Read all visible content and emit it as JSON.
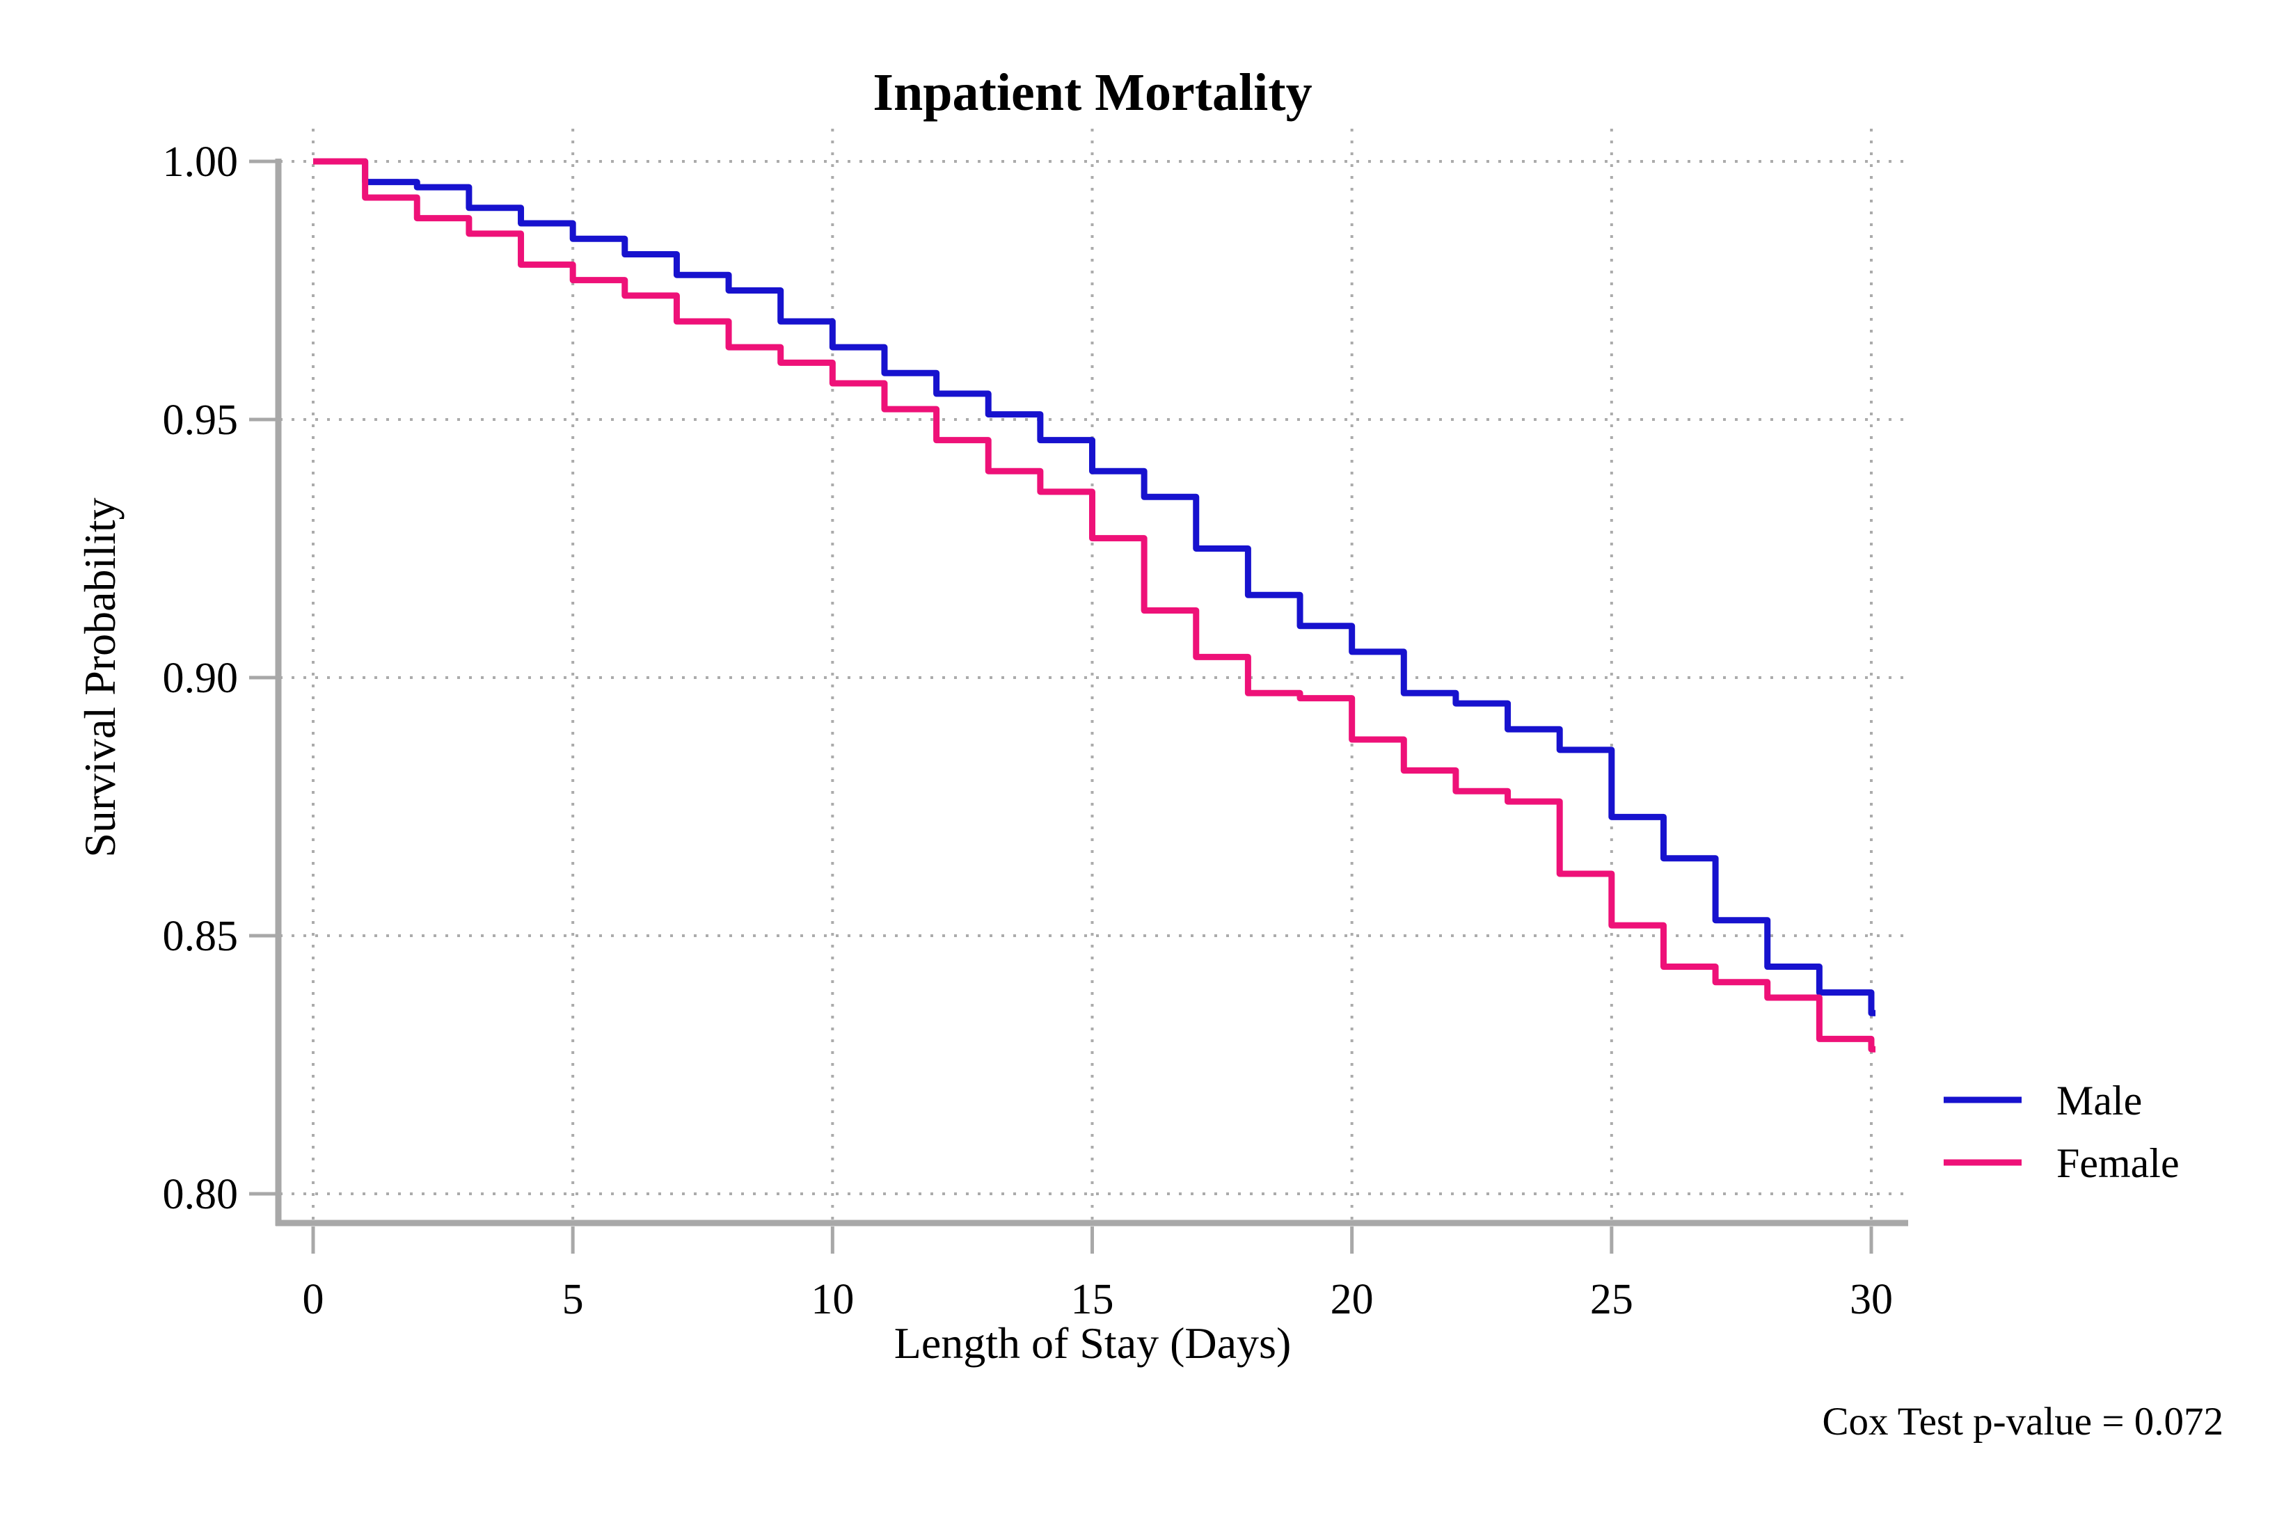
{
  "title": "Inpatient Mortality",
  "axes": {
    "x_label": "Length of Stay (Days)",
    "y_label": "Survival Probability",
    "x_tick_labels": [
      "0",
      "5",
      "10",
      "15",
      "20",
      "25",
      "30"
    ],
    "y_tick_labels": [
      "1.00",
      "0.95",
      "0.90",
      "0.85",
      "0.80"
    ]
  },
  "legend": {
    "items": [
      {
        "label": "Male",
        "color": "#1712CE"
      },
      {
        "label": "Female",
        "color": "#EE1178"
      }
    ]
  },
  "annotation": "Cox Test p-value = 0.072",
  "colors": {
    "male_line": "#1712CE",
    "female_line": "#EE1178",
    "axis": "#A8A8A8",
    "gridline": "#ABABAB",
    "text": "#000000",
    "background": "#FFFFFF"
  },
  "chart_data": {
    "type": "line",
    "subtype": "kaplan-meier-step",
    "title": "Inpatient Mortality",
    "xlabel": "Length of Stay (Days)",
    "ylabel": "Survival Probability",
    "xlim": [
      0,
      30
    ],
    "ylim": [
      0.8,
      1.0
    ],
    "x_ticks": [
      0,
      5,
      10,
      15,
      20,
      25,
      30
    ],
    "y_ticks": [
      1.0,
      0.95,
      0.9,
      0.85,
      0.8
    ],
    "grid": true,
    "legend_position": "right-of-plot-bottom",
    "annotation": "Cox Test p-value = 0.072",
    "x": [
      0,
      1,
      2,
      3,
      4,
      5,
      6,
      7,
      8,
      9,
      10,
      11,
      12,
      13,
      14,
      15,
      16,
      17,
      18,
      19,
      20,
      21,
      22,
      23,
      24,
      25,
      26,
      27,
      28,
      29,
      30
    ],
    "series": [
      {
        "name": "Male",
        "color": "#1712CE",
        "values": [
          1.0,
          0.996,
          0.995,
          0.991,
          0.988,
          0.985,
          0.982,
          0.978,
          0.975,
          0.969,
          0.964,
          0.959,
          0.955,
          0.951,
          0.946,
          0.94,
          0.935,
          0.925,
          0.916,
          0.91,
          0.905,
          0.897,
          0.895,
          0.89,
          0.886,
          0.873,
          0.865,
          0.853,
          0.844,
          0.839,
          0.835
        ]
      },
      {
        "name": "Female",
        "color": "#EE1178",
        "values": [
          1.0,
          0.993,
          0.989,
          0.986,
          0.98,
          0.977,
          0.974,
          0.969,
          0.964,
          0.961,
          0.957,
          0.952,
          0.946,
          0.94,
          0.936,
          0.927,
          0.913,
          0.904,
          0.897,
          0.896,
          0.888,
          0.882,
          0.878,
          0.876,
          0.862,
          0.852,
          0.844,
          0.841,
          0.838,
          0.83,
          0.828
        ]
      }
    ]
  }
}
